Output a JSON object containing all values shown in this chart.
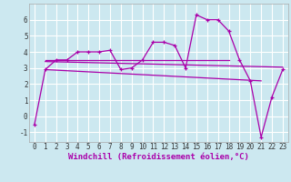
{
  "xlabel": "Windchill (Refroidissement éolien,°C)",
  "background_color": "#cce8f0",
  "grid_color": "#ffffff",
  "line_color": "#aa00aa",
  "xlim": [
    -0.5,
    23.5
  ],
  "ylim": [
    -1.6,
    7.0
  ],
  "xticks": [
    0,
    1,
    2,
    3,
    4,
    5,
    6,
    7,
    8,
    9,
    10,
    11,
    12,
    13,
    14,
    15,
    16,
    17,
    18,
    19,
    20,
    21,
    22,
    23
  ],
  "yticks": [
    -1,
    0,
    1,
    2,
    3,
    4,
    5,
    6
  ],
  "main_y": [
    -0.5,
    2.9,
    3.5,
    3.5,
    4.0,
    4.0,
    4.0,
    4.1,
    2.9,
    3.0,
    3.5,
    4.6,
    4.6,
    4.4,
    3.0,
    6.3,
    6.0,
    6.0,
    5.3,
    3.5,
    2.2,
    -1.3,
    1.2,
    2.9
  ],
  "flat_line": {
    "x": [
      1,
      18
    ],
    "y": [
      3.5,
      3.5
    ]
  },
  "trend_line1": {
    "x": [
      1,
      23
    ],
    "y": [
      3.4,
      3.05
    ]
  },
  "trend_line2": {
    "x": [
      1,
      21
    ],
    "y": [
      2.9,
      2.2
    ]
  },
  "tick_fontsize": 5.5,
  "xlabel_fontsize": 6.5
}
